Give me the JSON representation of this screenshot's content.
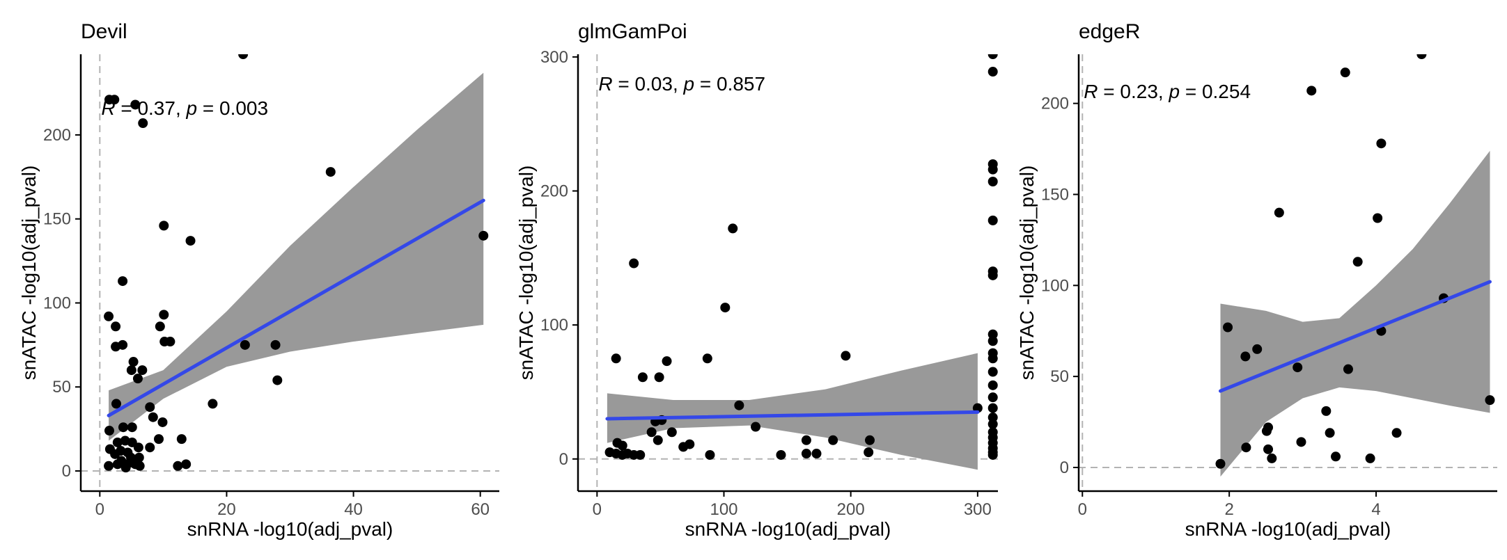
{
  "colors": {
    "point": "#000000",
    "line": "#3448E8",
    "ribbon": "#999999",
    "refline": "#B3B3B3",
    "axis": "#000000",
    "tick_label": "#4D4D4D"
  },
  "chart_data": [
    {
      "type": "scatter",
      "title": "Devil",
      "xlabel": "snRNA -log10(adj_pval)",
      "ylabel": "snATAC -log10(adj_pval)",
      "xlim": [
        -3,
        63
      ],
      "ylim": [
        -12,
        248
      ],
      "xticks": [
        0,
        20,
        40,
        60
      ],
      "yticks": [
        0,
        50,
        100,
        150,
        200
      ],
      "annotation": {
        "r": "0.37",
        "p": "0.003",
        "x": 0,
        "y": 212
      },
      "refline_x": 0,
      "refline_y": 0,
      "points": [
        [
          1.5,
          221
        ],
        [
          2.3,
          221
        ],
        [
          5.6,
          218
        ],
        [
          6.8,
          207
        ],
        [
          22.6,
          248
        ],
        [
          36.4,
          178
        ],
        [
          60.5,
          140
        ],
        [
          10.1,
          146
        ],
        [
          14.3,
          137
        ],
        [
          1.4,
          92
        ],
        [
          10.1,
          93
        ],
        [
          2.5,
          86
        ],
        [
          9.5,
          86
        ],
        [
          3.6,
          113
        ],
        [
          10.2,
          77
        ],
        [
          11.1,
          77
        ],
        [
          2.5,
          74
        ],
        [
          3.6,
          75
        ],
        [
          5.3,
          65
        ],
        [
          6.7,
          60
        ],
        [
          22.9,
          75
        ],
        [
          27.7,
          75
        ],
        [
          28,
          54
        ],
        [
          5,
          60
        ],
        [
          6,
          55
        ],
        [
          17.8,
          40
        ],
        [
          2.6,
          40
        ],
        [
          7.9,
          38
        ],
        [
          8.4,
          32
        ],
        [
          5.1,
          26
        ],
        [
          9.9,
          29
        ],
        [
          1.5,
          24
        ],
        [
          3.7,
          26
        ],
        [
          7.9,
          14
        ],
        [
          9.3,
          19
        ],
        [
          12.9,
          19
        ],
        [
          1.6,
          13
        ],
        [
          2.8,
          17
        ],
        [
          4,
          18
        ],
        [
          5.1,
          17
        ],
        [
          2.4,
          10
        ],
        [
          3.3,
          12
        ],
        [
          4.4,
          11
        ],
        [
          4.9,
          8
        ],
        [
          5.1,
          5
        ],
        [
          6.1,
          14
        ],
        [
          6.2,
          8
        ],
        [
          2.8,
          4
        ],
        [
          3.4,
          6
        ],
        [
          4.3,
          4
        ],
        [
          5.6,
          4
        ],
        [
          6.3,
          3
        ],
        [
          12.3,
          3
        ],
        [
          13.6,
          4
        ],
        [
          1.4,
          3
        ],
        [
          4.1,
          2
        ]
      ],
      "fit": {
        "x0": 1.4,
        "x1": 60.5,
        "y0": 33,
        "y1": 161
      },
      "ribbon_x": [
        1.4,
        10,
        20,
        30,
        40,
        50,
        60.5
      ],
      "ribbon_lo": [
        18,
        43,
        62,
        71,
        77,
        82,
        87
      ],
      "ribbon_hi": [
        48,
        60,
        95,
        134,
        169,
        203,
        237
      ]
    },
    {
      "type": "scatter",
      "title": "glmGamPoi",
      "xlabel": "snRNA -log10(adj_pval)",
      "ylabel": "snATAC -log10(adj_pval)",
      "xlim": [
        -15,
        316
      ],
      "ylim": [
        -24,
        302
      ],
      "xticks": [
        0,
        100,
        200,
        300
      ],
      "yticks": [
        0,
        100,
        200,
        300
      ],
      "annotation": {
        "r": "0.03",
        "p": "0.857",
        "x": 0,
        "y": 275
      },
      "refline_x": 0,
      "refline_y": 0,
      "points": [
        [
          29,
          146
        ],
        [
          107,
          172
        ],
        [
          101,
          113
        ],
        [
          196,
          77
        ],
        [
          15,
          75
        ],
        [
          55,
          73
        ],
        [
          87,
          75
        ],
        [
          36,
          61
        ],
        [
          49,
          61
        ],
        [
          112,
          40
        ],
        [
          300,
          38
        ],
        [
          46,
          28
        ],
        [
          51,
          29
        ],
        [
          43,
          20
        ],
        [
          59,
          20
        ],
        [
          125,
          24
        ],
        [
          73,
          11
        ],
        [
          68,
          9
        ],
        [
          48,
          14
        ],
        [
          165,
          14
        ],
        [
          186,
          14
        ],
        [
          215,
          14
        ],
        [
          16,
          12
        ],
        [
          20,
          10
        ],
        [
          10,
          5
        ],
        [
          15,
          4
        ],
        [
          20,
          3
        ],
        [
          24,
          4
        ],
        [
          29,
          3
        ],
        [
          34,
          3
        ],
        [
          89,
          3
        ],
        [
          145,
          3
        ],
        [
          165,
          4
        ],
        [
          173,
          4
        ],
        [
          214,
          5
        ],
        [
          312,
          302
        ],
        [
          312,
          289
        ],
        [
          312,
          220
        ],
        [
          312,
          216
        ],
        [
          312,
          207
        ],
        [
          312,
          178
        ],
        [
          312,
          140
        ],
        [
          312,
          137
        ],
        [
          312,
          93
        ],
        [
          312,
          88
        ],
        [
          312,
          79
        ],
        [
          312,
          75
        ],
        [
          312,
          65
        ],
        [
          312,
          55
        ],
        [
          312,
          46
        ],
        [
          312,
          38
        ],
        [
          312,
          31
        ],
        [
          312,
          26
        ],
        [
          312,
          20
        ],
        [
          312,
          16
        ],
        [
          312,
          12
        ],
        [
          312,
          8
        ],
        [
          312,
          5
        ],
        [
          312,
          3
        ]
      ],
      "fit": {
        "x0": 8,
        "x1": 300,
        "y0": 30,
        "y1": 35
      },
      "ribbon_x": [
        8,
        60,
        120,
        180,
        240,
        300
      ],
      "ribbon_lo": [
        12,
        23,
        25,
        16,
        3,
        -8
      ],
      "ribbon_hi": [
        49,
        44,
        44,
        52,
        66,
        79
      ]
    },
    {
      "type": "scatter",
      "title": "edgeR",
      "xlabel": "snRNA -log10(adj_pval)",
      "ylabel": "snATAC -log10(adj_pval)",
      "xlim": [
        -0.05,
        5.65
      ],
      "ylim": [
        -13,
        227
      ],
      "xticks": [
        0,
        2,
        4
      ],
      "yticks": [
        0,
        50,
        100,
        150,
        200
      ],
      "annotation": {
        "r": "0.23",
        "p": "0.254",
        "x": 0,
        "y": 203
      },
      "refline_x": 0,
      "refline_y": 0,
      "points": [
        [
          4.62,
          227
        ],
        [
          3.58,
          217
        ],
        [
          3.12,
          207
        ],
        [
          4.07,
          178
        ],
        [
          4.02,
          137
        ],
        [
          2.68,
          140
        ],
        [
          3.75,
          113
        ],
        [
          4.92,
          93
        ],
        [
          1.98,
          77
        ],
        [
          4.07,
          75
        ],
        [
          2.38,
          65
        ],
        [
          2.22,
          61
        ],
        [
          2.93,
          55
        ],
        [
          3.62,
          54
        ],
        [
          5.55,
          37
        ],
        [
          3.32,
          31
        ],
        [
          2.53,
          22
        ],
        [
          2.51,
          20
        ],
        [
          4.28,
          19
        ],
        [
          3.37,
          19
        ],
        [
          2.98,
          14
        ],
        [
          2.23,
          11
        ],
        [
          2.53,
          10
        ],
        [
          3.45,
          6
        ],
        [
          3.92,
          5
        ],
        [
          2.58,
          5
        ],
        [
          1.88,
          2
        ]
      ],
      "fit": {
        "x0": 1.88,
        "x1": 5.55,
        "y0": 42,
        "y1": 102
      },
      "ribbon_x": [
        1.88,
        2.5,
        3,
        3.5,
        4,
        4.5,
        5,
        5.55
      ],
      "ribbon_lo": [
        -5,
        25,
        38,
        44,
        42,
        38,
        34,
        30
      ],
      "ribbon_hi": [
        90,
        86,
        80,
        82,
        100,
        120,
        145,
        174
      ]
    }
  ]
}
